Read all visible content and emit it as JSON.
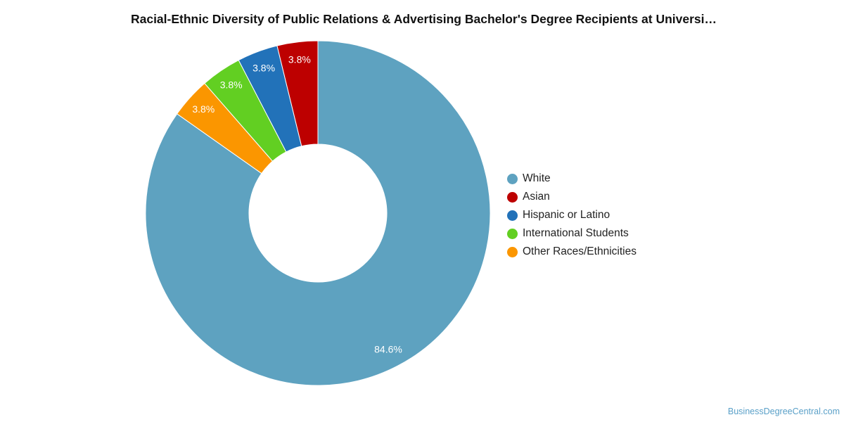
{
  "chart_data": {
    "type": "pie",
    "variant": "donut",
    "title": "Racial-Ethnic Diversity of Public Relations & Advertising Bachelor's Degree Recipients at Universi…",
    "slices": [
      {
        "name": "White",
        "value": 84.6,
        "label": "84.6%",
        "color": "#5ea2c0"
      },
      {
        "name": "Asian",
        "value": 3.8,
        "label": "3.8%",
        "color": "#bd0000"
      },
      {
        "name": "Hispanic or Latino",
        "value": 3.8,
        "label": "3.8%",
        "color": "#2272b9"
      },
      {
        "name": "International Students",
        "value": 3.8,
        "label": "3.8%",
        "color": "#62cf22"
      },
      {
        "name": "Other Races/Ethnicities",
        "value": 3.8,
        "label": "3.8%",
        "color": "#fb9600"
      }
    ],
    "legend_position": "right",
    "start_angle": "top, clockwise"
  },
  "source": {
    "label": "BusinessDegreeCentral.com"
  }
}
